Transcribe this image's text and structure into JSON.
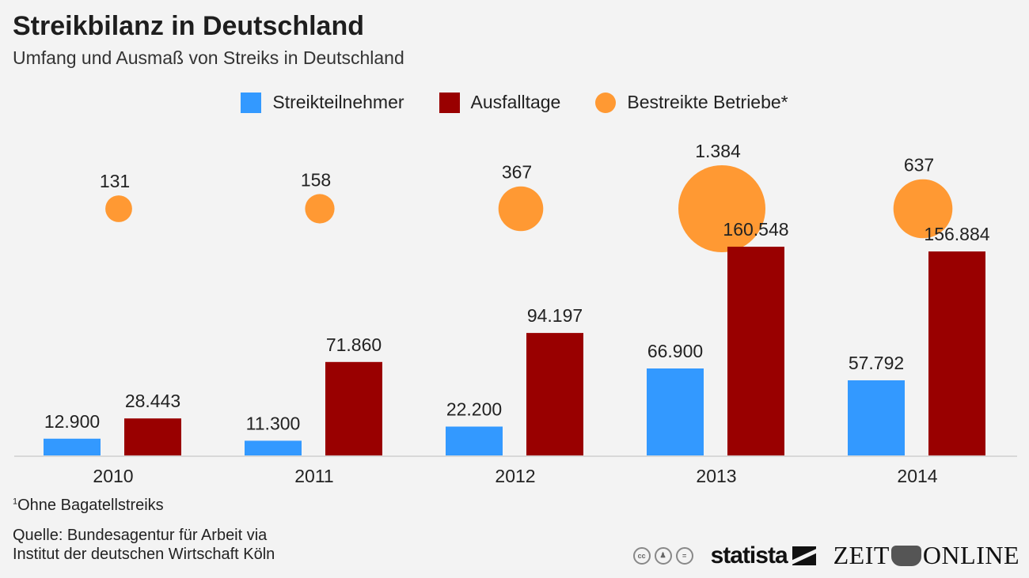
{
  "chart_data": {
    "type": "bar",
    "title": "Streikbilanz in Deutschland",
    "subtitle": "Umfang und Ausmaß von Streiks in Deutschland",
    "categories": [
      "2010",
      "2011",
      "2012",
      "2013",
      "2014"
    ],
    "series": [
      {
        "name": "Streikteilnehmer",
        "kind": "bar",
        "color": "#3399ff",
        "values": [
          12900,
          11300,
          22200,
          66900,
          57792
        ],
        "labels": [
          "12.900",
          "11.300",
          "22.200",
          "66.900",
          "57.792"
        ]
      },
      {
        "name": "Ausfalltage",
        "kind": "bar",
        "color": "#990000",
        "values": [
          28443,
          71860,
          94197,
          160548,
          156884
        ],
        "labels": [
          "28.443",
          "71.860",
          "94.197",
          "160.548",
          "156.884"
        ]
      },
      {
        "name": "Bestreikte Betriebe*",
        "kind": "bubble",
        "color": "#ff9933",
        "values": [
          131,
          158,
          367,
          1384,
          637
        ],
        "labels": [
          "131",
          "158",
          "367",
          "1.384",
          "637"
        ]
      }
    ],
    "xlabel": "",
    "ylabel": "",
    "ylim": [
      0,
      160548
    ],
    "grid": false,
    "legend_position": "top-center"
  },
  "footnote": {
    "marker": "1",
    "text": "Ohne Bagatellstreiks"
  },
  "source": {
    "line1": "Quelle: Bundesagentur für Arbeit via",
    "line2": "Institut der deutschen Wirtschaft Köln"
  },
  "logos": {
    "cc_icons": [
      "cc",
      "by",
      "nd"
    ],
    "statista": "statista",
    "zeit_left": "ZEIT",
    "zeit_right": "ONLINE"
  }
}
